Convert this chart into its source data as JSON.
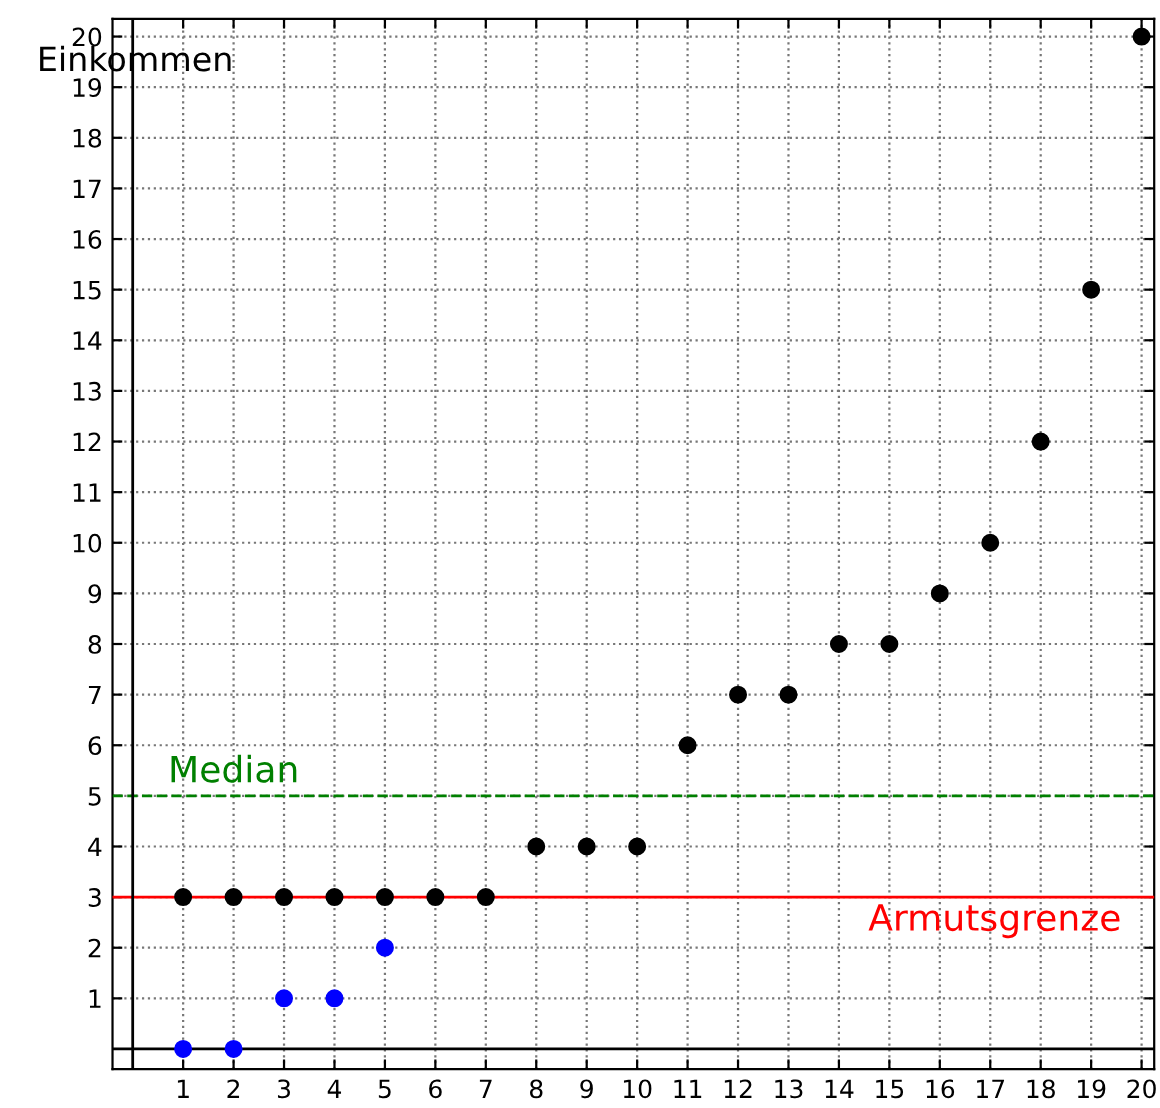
{
  "chart_data": {
    "type": "scatter",
    "ylabel": "Einkommen",
    "xlim": [
      -0.4,
      20.25
    ],
    "ylim": [
      -0.4,
      20.35
    ],
    "xticks": [
      1,
      2,
      3,
      4,
      5,
      6,
      7,
      8,
      9,
      10,
      11,
      12,
      13,
      14,
      15,
      16,
      17,
      18,
      19,
      20
    ],
    "yticks": [
      1,
      2,
      3,
      4,
      5,
      6,
      7,
      8,
      9,
      10,
      11,
      12,
      13,
      14,
      15,
      16,
      17,
      18,
      19,
      20
    ],
    "grid": true,
    "marker": "circle",
    "series": [
      {
        "color": "#000000",
        "x": [
          1,
          2,
          3,
          4,
          5,
          6,
          7,
          8,
          9,
          10,
          11,
          12,
          13,
          14,
          15,
          16,
          17,
          18,
          19,
          20
        ],
        "values": [
          3,
          3,
          3,
          3,
          3,
          3,
          3,
          4,
          4,
          4,
          6,
          7,
          7,
          8,
          8,
          9,
          10,
          12,
          15,
          20
        ]
      },
      {
        "color": "#0000ff",
        "x": [
          1,
          2,
          3,
          4,
          5
        ],
        "values": [
          0,
          0,
          1,
          1,
          2
        ]
      }
    ],
    "ref_lines": [
      {
        "axis": "y",
        "value": 5,
        "label": "Median",
        "color": "#008000",
        "line_style": "dashed"
      },
      {
        "axis": "y",
        "value": 3,
        "label": "Armutsgrenze",
        "color": "#ff0000",
        "line_style": "solid"
      },
      {
        "axis": "x",
        "value": 0,
        "color": "#000000",
        "line_style": "solid"
      },
      {
        "axis": "y",
        "value": 0,
        "color": "#000000",
        "line_style": "solid"
      }
    ]
  }
}
